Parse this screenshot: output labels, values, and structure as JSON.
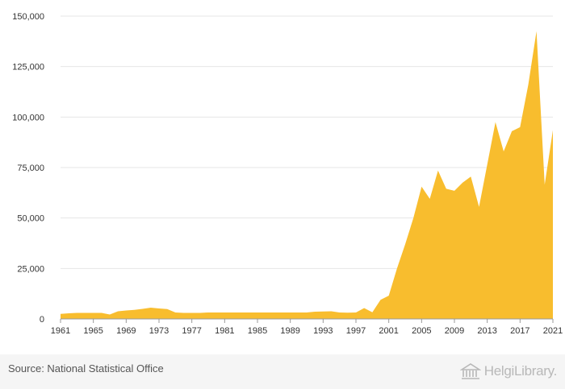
{
  "chart_data": {
    "type": "area",
    "title": "",
    "xlabel": "",
    "ylabel": "",
    "x": [
      1961,
      1962,
      1963,
      1964,
      1965,
      1966,
      1967,
      1968,
      1969,
      1970,
      1971,
      1972,
      1973,
      1974,
      1975,
      1976,
      1977,
      1978,
      1979,
      1980,
      1981,
      1982,
      1983,
      1984,
      1985,
      1986,
      1987,
      1988,
      1989,
      1990,
      1991,
      1992,
      1993,
      1994,
      1995,
      1996,
      1997,
      1998,
      1999,
      2000,
      2001,
      2002,
      2003,
      2004,
      2005,
      2006,
      2007,
      2008,
      2009,
      2010,
      2011,
      2012,
      2013,
      2014,
      2015,
      2016,
      2017,
      2018,
      2019,
      2020,
      2021
    ],
    "values": [
      2500,
      2800,
      3000,
      3000,
      3000,
      3000,
      2200,
      3800,
      4200,
      4500,
      5000,
      5600,
      5200,
      4900,
      3200,
      3000,
      3000,
      3000,
      3200,
      3200,
      3200,
      3200,
      3200,
      3200,
      3200,
      3200,
      3200,
      3200,
      3200,
      3200,
      3200,
      3600,
      3700,
      3800,
      3200,
      3100,
      3200,
      5400,
      3300,
      9500,
      11500,
      25000,
      37000,
      50000,
      65500,
      59500,
      73500,
      64500,
      63500,
      67500,
      70500,
      55500,
      76500,
      97500,
      83000,
      93000,
      95000,
      116000,
      142500,
      66500,
      93500
    ],
    "xticks": [
      "1961",
      "1965",
      "1969",
      "1973",
      "1977",
      "1981",
      "1985",
      "1989",
      "1993",
      "1997",
      "2001",
      "2005",
      "2009",
      "2013",
      "2017",
      "2021"
    ],
    "yticks": [
      "0",
      "25,000",
      "50,000",
      "75,000",
      "100,000",
      "125,000",
      "150,000"
    ],
    "ylim": [
      0,
      150000
    ],
    "grid": true,
    "color": "#F8BD2E"
  },
  "footer": {
    "source": "Source: National Statistical Office",
    "logo": "HelgiLibrary."
  }
}
